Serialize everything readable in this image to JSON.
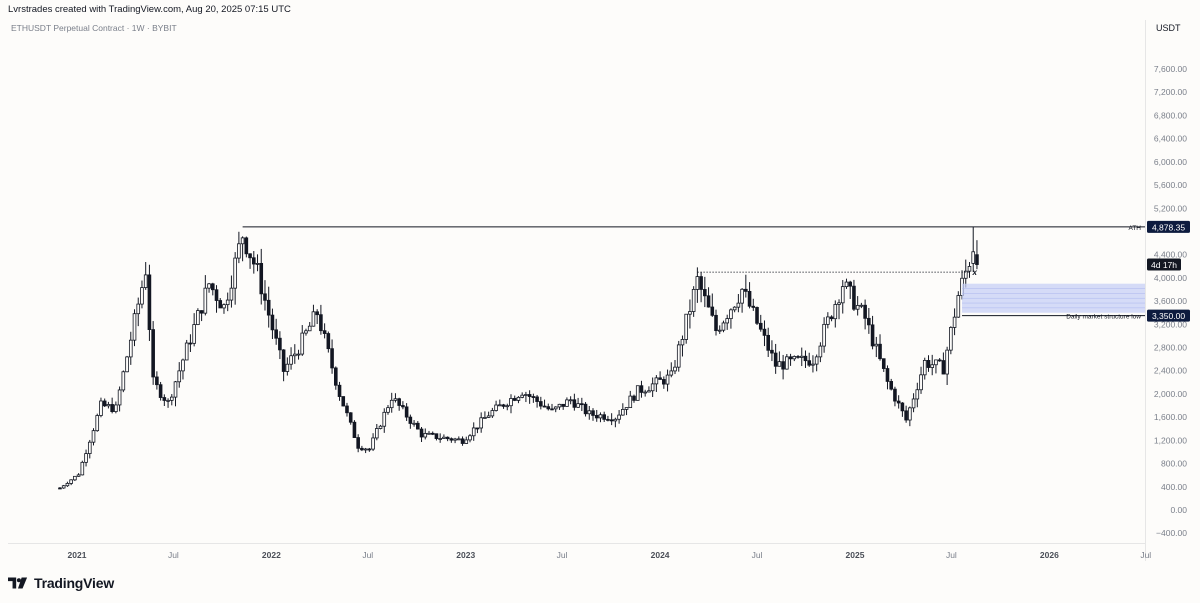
{
  "header": {
    "created_by": "Lvrstrades created with TradingView.com, Aug 20, 2025 07:15 UTC",
    "symbol": "ETHUSDT Perpetual Contract · 1W · BYBIT",
    "currency": "USDT"
  },
  "footer": {
    "brand": "TradingView"
  },
  "colors": {
    "candle": "#131722",
    "background": "#fdfcfa",
    "zone": "#c7d0f5",
    "label_bg": "#0d1b3e",
    "axis_text": "#7a7f8a"
  },
  "chart_data": {
    "type": "candlestick",
    "title": "ETHUSDT Perpetual Contract · 1W · BYBIT",
    "ylabel": "USDT",
    "ylim": [
      -480,
      7800
    ],
    "y_ticks": [
      "7,600.00",
      "7,200.00",
      "6,800.00",
      "6,400.00",
      "6,000.00",
      "5,600.00",
      "5,200.00",
      "4,400.00",
      "4,000.00",
      "3,600.00",
      "3,200.00",
      "2,800.00",
      "2,400.00",
      "2,000.00",
      "1,600.00",
      "1,200.00",
      "800.00",
      "400.00",
      "0.00",
      "−400.00"
    ],
    "y_tick_values": [
      7600,
      7200,
      6800,
      6400,
      6000,
      5600,
      5200,
      4400,
      4000,
      3600,
      3200,
      2800,
      2400,
      2000,
      1600,
      1200,
      800,
      400,
      0,
      -400
    ],
    "x_ticks": [
      {
        "label": "2021",
        "date": "2021-01-01",
        "bold": true
      },
      {
        "label": "Jul",
        "date": "2021-07-01",
        "bold": false
      },
      {
        "label": "2022",
        "date": "2022-01-01",
        "bold": true
      },
      {
        "label": "Jul",
        "date": "2022-07-01",
        "bold": false
      },
      {
        "label": "2023",
        "date": "2023-01-01",
        "bold": true
      },
      {
        "label": "Jul",
        "date": "2023-07-01",
        "bold": false
      },
      {
        "label": "2024",
        "date": "2024-01-01",
        "bold": true
      },
      {
        "label": "Jul",
        "date": "2024-07-01",
        "bold": false
      },
      {
        "label": "2025",
        "date": "2025-01-01",
        "bold": true
      },
      {
        "label": "Jul",
        "date": "2025-07-01",
        "bold": false
      },
      {
        "label": "2026",
        "date": "2026-01-01",
        "bold": true
      },
      {
        "label": "Jul",
        "date": "2026-07-01",
        "bold": false
      }
    ],
    "ohlc_anchors": [
      {
        "date": "2020-11-30",
        "price": 380
      },
      {
        "date": "2021-01-04",
        "price": 620
      },
      {
        "date": "2021-02-15",
        "price": 1800
      },
      {
        "date": "2021-03-15",
        "price": 1750
      },
      {
        "date": "2021-05-10",
        "price": 4150
      },
      {
        "date": "2021-05-24",
        "price": 2200
      },
      {
        "date": "2021-06-21",
        "price": 1850
      },
      {
        "date": "2021-08-09",
        "price": 3150
      },
      {
        "date": "2021-09-06",
        "price": 3900
      },
      {
        "date": "2021-10-04",
        "price": 3500
      },
      {
        "date": "2021-11-08",
        "price": 4750
      },
      {
        "date": "2021-12-06",
        "price": 4100
      },
      {
        "date": "2022-01-24",
        "price": 2400
      },
      {
        "date": "2022-02-21",
        "price": 2800
      },
      {
        "date": "2022-03-28",
        "price": 3400
      },
      {
        "date": "2022-05-09",
        "price": 2000
      },
      {
        "date": "2022-06-13",
        "price": 1100
      },
      {
        "date": "2022-07-04",
        "price": 1050
      },
      {
        "date": "2022-08-15",
        "price": 1950
      },
      {
        "date": "2022-10-10",
        "price": 1300
      },
      {
        "date": "2022-11-14",
        "price": 1250
      },
      {
        "date": "2022-12-26",
        "price": 1200
      },
      {
        "date": "2023-02-13",
        "price": 1650
      },
      {
        "date": "2023-04-17",
        "price": 2050
      },
      {
        "date": "2023-06-12",
        "price": 1700
      },
      {
        "date": "2023-07-17",
        "price": 1900
      },
      {
        "date": "2023-08-21",
        "price": 1650
      },
      {
        "date": "2023-10-09",
        "price": 1600
      },
      {
        "date": "2023-11-20",
        "price": 2050
      },
      {
        "date": "2024-01-22",
        "price": 2300
      },
      {
        "date": "2024-03-11",
        "price": 3950
      },
      {
        "date": "2024-04-15",
        "price": 3100
      },
      {
        "date": "2024-06-03",
        "price": 3800
      },
      {
        "date": "2024-08-05",
        "price": 2500
      },
      {
        "date": "2024-10-14",
        "price": 2600
      },
      {
        "date": "2024-12-09",
        "price": 3900
      },
      {
        "date": "2025-01-20",
        "price": 3300
      },
      {
        "date": "2025-03-03",
        "price": 2200
      },
      {
        "date": "2025-04-07",
        "price": 1550
      },
      {
        "date": "2025-05-12",
        "price": 2550
      },
      {
        "date": "2025-06-16",
        "price": 2450
      },
      {
        "date": "2025-07-14",
        "price": 3700
      },
      {
        "date": "2025-08-11",
        "price": 4500
      },
      {
        "date": "2025-08-18",
        "price": 4230
      }
    ],
    "annotations": {
      "ath": {
        "label": "ATH",
        "value_label": "4,878.35",
        "price": 4878.35,
        "from_date": "2021-11-08"
      },
      "market_structure": {
        "label": "Daily market structure low",
        "value_label": "3,350.00",
        "price": 3350,
        "from_date": "2025-07-21"
      },
      "range_high": {
        "price": 4100,
        "from_date": "2024-03-11",
        "to_date": "2025-08-04",
        "marker": "x"
      },
      "demand_zone": {
        "top": 3900,
        "bottom": 3400,
        "from_date": "2025-07-21"
      },
      "countdown": {
        "label": "4d 17h",
        "price": 4230
      }
    }
  }
}
